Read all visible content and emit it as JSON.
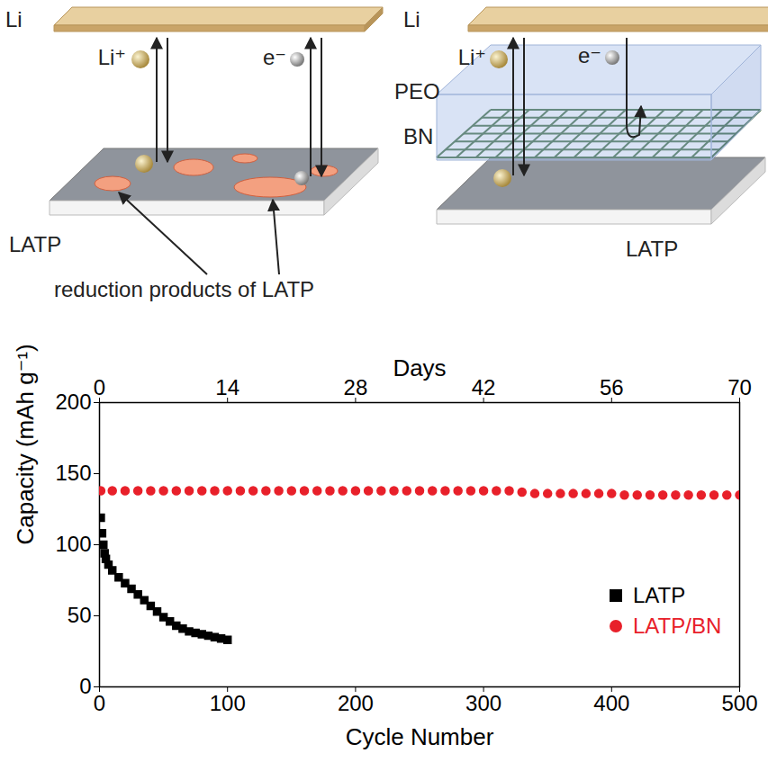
{
  "diagram": {
    "left_panel": {
      "li": "Li",
      "li_ion": "Li⁺",
      "electron": "e⁻",
      "electrolyte": "LATP",
      "callout": "reduction products of LATP"
    },
    "right_panel": {
      "li": "Li",
      "li_ion": "Li⁺",
      "electron": "e⁻",
      "polymer": "PEO",
      "interlayer": "BN",
      "electrolyte": "LATP"
    }
  },
  "chart_data": {
    "type": "scatter",
    "x_label": "Cycle Number",
    "x2_label": "Days",
    "y_label": "Capacity (mAh g⁻¹)",
    "xlim": [
      0,
      500
    ],
    "xticks": [
      0,
      100,
      200,
      300,
      400,
      500
    ],
    "x2lim": [
      0,
      70
    ],
    "x2ticks": [
      0,
      14,
      28,
      42,
      56,
      70
    ],
    "ylim": [
      0,
      200
    ],
    "yticks": [
      0,
      50,
      100,
      150,
      200
    ],
    "grid": false,
    "legend": "lower right",
    "series": [
      {
        "name": "LATP",
        "color": "#000000",
        "marker": "square",
        "x": [
          1,
          2,
          3,
          4,
          5,
          7,
          10,
          15,
          20,
          25,
          30,
          35,
          40,
          45,
          50,
          55,
          60,
          65,
          70,
          75,
          80,
          85,
          90,
          95,
          100
        ],
        "values": [
          119,
          108,
          100,
          94,
          90,
          86,
          82,
          77,
          73,
          69,
          65,
          61,
          57,
          53,
          49,
          46,
          43,
          41,
          39,
          38,
          37,
          36,
          35,
          34,
          33
        ]
      },
      {
        "name": "LATP/BN",
        "color": "#e8202a",
        "marker": "circle",
        "x": [
          1,
          10,
          20,
          30,
          40,
          50,
          60,
          70,
          80,
          90,
          100,
          110,
          120,
          130,
          140,
          150,
          160,
          170,
          180,
          190,
          200,
          210,
          220,
          230,
          240,
          250,
          260,
          270,
          280,
          290,
          300,
          310,
          320,
          330,
          340,
          350,
          360,
          370,
          380,
          390,
          400,
          410,
          420,
          430,
          440,
          450,
          460,
          470,
          480,
          490,
          500
        ],
        "values": [
          138,
          138,
          138,
          138,
          138,
          138,
          138,
          138,
          138,
          138,
          138,
          138,
          138,
          138,
          138,
          138,
          138,
          138,
          138,
          138,
          138,
          138,
          138,
          138,
          138,
          138,
          138,
          138,
          138,
          138,
          138,
          138,
          138,
          137,
          136,
          136,
          136,
          136,
          136,
          136,
          136,
          135,
          135,
          135,
          135,
          135,
          135,
          135,
          135,
          135,
          135
        ]
      }
    ]
  }
}
